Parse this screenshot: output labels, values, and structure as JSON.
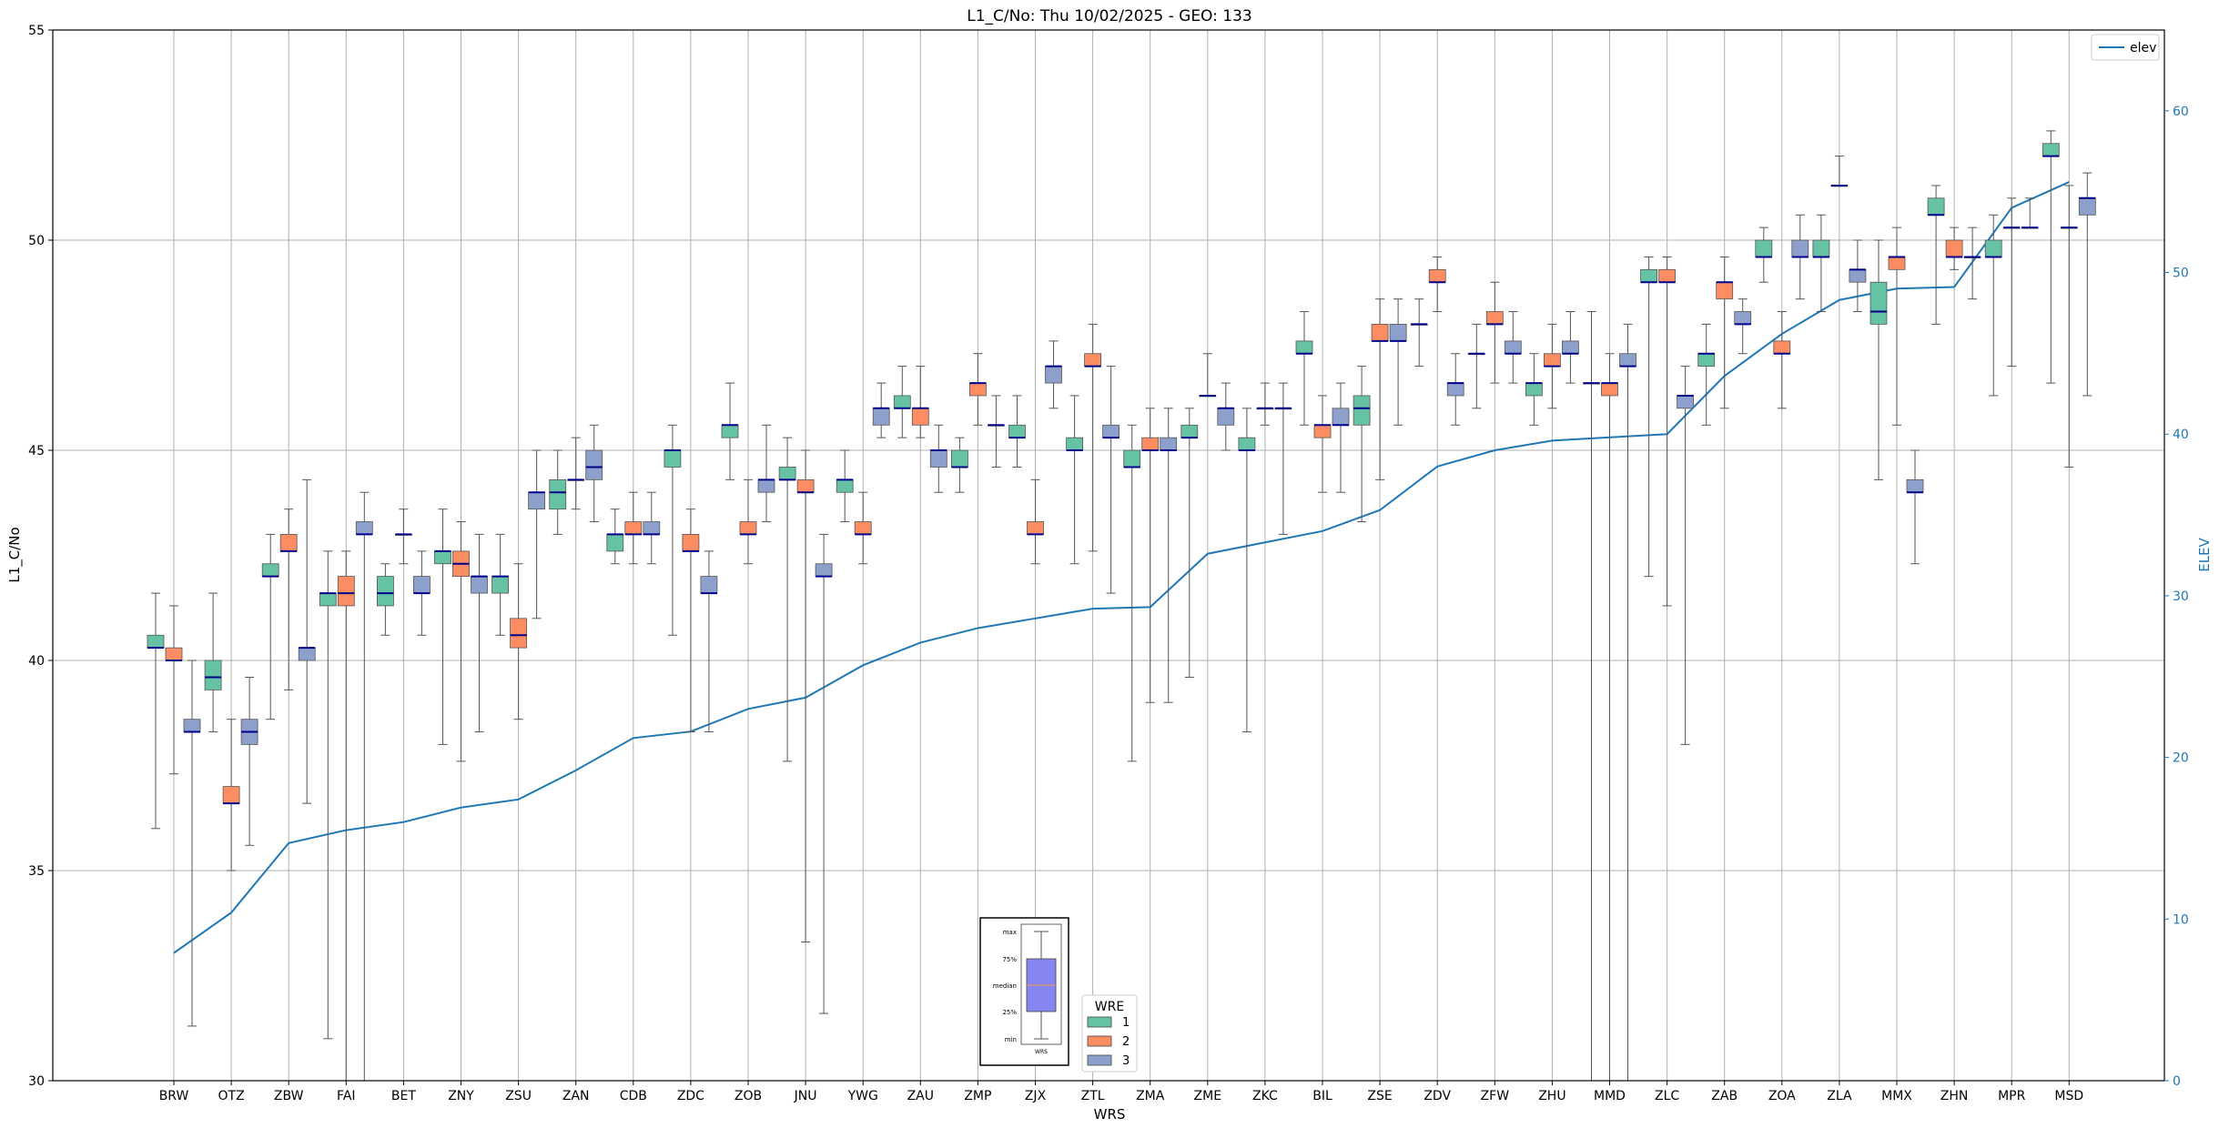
{
  "chart_data": {
    "type": "box",
    "title": "L1_C/No: Thu 10/02/2025 - GEO: 133",
    "xlabel": "WRS",
    "ylabel": "L1_C/No",
    "y2label": "ELEV",
    "ylim": [
      30,
      55
    ],
    "y2lim": [
      0,
      65
    ],
    "yticks": [
      30,
      35,
      40,
      45,
      50,
      55
    ],
    "y2ticks": [
      0,
      10,
      20,
      30,
      40,
      50,
      60
    ],
    "grid": true,
    "categories": [
      "BRW",
      "OTZ",
      "ZBW",
      "FAI",
      "BET",
      "ZNY",
      "ZSU",
      "ZAN",
      "CDB",
      "ZDC",
      "ZOB",
      "JNU",
      "YWG",
      "ZAU",
      "ZMP",
      "ZJX",
      "ZTL",
      "ZMA",
      "ZME",
      "ZKC",
      "BIL",
      "ZSE",
      "ZDV",
      "ZFW",
      "ZHU",
      "MMD",
      "ZLC",
      "ZAB",
      "ZOA",
      "ZLA",
      "MMX",
      "ZHN",
      "MPR",
      "MSD"
    ],
    "colors": {
      "1": "#66c2a5",
      "2": "#fc8d62",
      "3": "#8da0cb",
      "median": "#00008b",
      "elev": "#1f77b4",
      "whisker": "#555555"
    },
    "legend": {
      "title": "WRE",
      "labels": [
        "1",
        "2",
        "3"
      ],
      "location": "bottom-center"
    },
    "line_legend": {
      "label": "elev",
      "location": "top-right"
    },
    "inset": {
      "labels": [
        "max",
        "75%",
        "median",
        "25%",
        "min"
      ],
      "xlabel": "WRS"
    },
    "series": [
      {
        "name": "1",
        "boxes": [
          [
            0,
            36.0,
            40.3,
            40.3,
            40.6,
            41.6
          ],
          [
            1,
            38.3,
            39.3,
            39.6,
            40.0,
            41.6
          ],
          [
            2,
            38.6,
            42.0,
            42.0,
            42.3,
            43.0
          ],
          [
            3,
            31.0,
            41.3,
            41.6,
            41.6,
            42.6
          ],
          [
            4,
            40.6,
            41.3,
            41.6,
            42.0,
            42.3
          ],
          [
            5,
            38.0,
            42.3,
            42.6,
            42.6,
            43.6
          ],
          [
            6,
            40.6,
            41.6,
            42.0,
            42.0,
            43.0
          ],
          [
            7,
            43.0,
            43.6,
            44.0,
            44.3,
            45.0
          ],
          [
            8,
            42.3,
            42.6,
            43.0,
            43.0,
            43.6
          ],
          [
            9,
            40.6,
            44.6,
            45.0,
            45.0,
            45.6
          ],
          [
            10,
            44.3,
            45.3,
            45.6,
            45.6,
            46.6
          ],
          [
            11,
            37.6,
            44.3,
            44.3,
            44.6,
            45.3
          ],
          [
            12,
            43.3,
            44.0,
            44.3,
            44.3,
            45.0
          ],
          [
            13,
            45.3,
            46.0,
            46.0,
            46.3,
            47.0
          ],
          [
            14,
            44.0,
            44.6,
            44.6,
            45.0,
            45.3
          ],
          [
            15,
            44.6,
            45.3,
            45.3,
            45.6,
            46.3
          ],
          [
            16,
            42.3,
            45.0,
            45.0,
            45.3,
            46.3
          ],
          [
            17,
            37.6,
            44.6,
            44.6,
            45.0,
            45.6
          ],
          [
            18,
            39.6,
            45.3,
            45.3,
            45.6,
            46.0
          ],
          [
            19,
            38.3,
            45.0,
            45.0,
            45.3,
            46.0
          ],
          [
            20,
            45.6,
            47.3,
            47.3,
            47.6,
            48.3
          ],
          [
            21,
            43.3,
            45.6,
            46.0,
            46.3,
            47.0
          ],
          [
            22,
            47.0,
            48.0,
            48.0,
            48.0,
            48.6
          ],
          [
            23,
            46.0,
            47.3,
            47.3,
            47.3,
            48.0
          ],
          [
            24,
            45.6,
            46.3,
            46.6,
            46.6,
            47.3
          ],
          [
            25,
            30.0,
            46.6,
            46.6,
            46.6,
            48.3
          ],
          [
            26,
            42.0,
            49.0,
            49.0,
            49.3,
            49.6
          ],
          [
            27,
            45.6,
            47.0,
            47.3,
            47.3,
            48.0
          ],
          [
            28,
            49.0,
            49.6,
            49.6,
            50.0,
            50.3
          ],
          [
            29,
            48.3,
            49.6,
            49.6,
            50.0,
            50.6
          ],
          [
            30,
            44.3,
            48.0,
            48.3,
            49.0,
            50.0
          ],
          [
            31,
            48.0,
            50.6,
            50.6,
            51.0,
            51.3
          ],
          [
            32,
            46.3,
            49.6,
            49.6,
            50.0,
            50.6
          ],
          [
            33,
            46.6,
            52.0,
            52.0,
            52.3,
            52.6
          ]
        ]
      },
      {
        "name": "2",
        "boxes": [
          [
            0,
            37.3,
            40.0,
            40.0,
            40.3,
            41.3
          ],
          [
            1,
            35.0,
            36.6,
            36.6,
            37.0,
            38.6
          ],
          [
            2,
            39.3,
            42.6,
            42.6,
            43.0,
            43.6
          ],
          [
            3,
            30.0,
            41.3,
            41.6,
            42.0,
            42.6
          ],
          [
            4,
            42.3,
            43.0,
            43.0,
            43.0,
            43.6
          ],
          [
            5,
            37.6,
            42.0,
            42.3,
            42.6,
            43.3
          ],
          [
            6,
            38.6,
            40.3,
            40.6,
            41.0,
            42.3
          ],
          [
            7,
            43.6,
            44.3,
            44.3,
            44.3,
            45.3
          ],
          [
            8,
            42.3,
            43.0,
            43.0,
            43.3,
            44.0
          ],
          [
            9,
            38.3,
            42.6,
            42.6,
            43.0,
            43.6
          ],
          [
            10,
            42.3,
            43.0,
            43.0,
            43.3,
            44.3
          ],
          [
            11,
            33.3,
            44.0,
            44.0,
            44.3,
            45.0
          ],
          [
            12,
            42.3,
            43.0,
            43.0,
            43.3,
            44.0
          ],
          [
            13,
            45.3,
            45.6,
            46.0,
            46.0,
            47.0
          ],
          [
            14,
            45.6,
            46.3,
            46.6,
            46.6,
            47.3
          ],
          [
            15,
            42.3,
            43.0,
            43.0,
            43.3,
            44.3
          ],
          [
            16,
            42.6,
            47.0,
            47.0,
            47.3,
            48.0
          ],
          [
            17,
            39.0,
            45.0,
            45.0,
            45.3,
            46.0
          ],
          [
            18,
            46.3,
            46.3,
            46.3,
            46.3,
            47.3
          ],
          [
            19,
            45.6,
            46.0,
            46.0,
            46.0,
            46.6
          ],
          [
            20,
            44.0,
            45.3,
            45.6,
            45.6,
            46.3
          ],
          [
            21,
            44.3,
            47.6,
            47.6,
            48.0,
            48.6
          ],
          [
            22,
            48.3,
            49.0,
            49.0,
            49.3,
            49.6
          ],
          [
            23,
            46.6,
            48.0,
            48.0,
            48.3,
            49.0
          ],
          [
            24,
            46.0,
            47.0,
            47.0,
            47.3,
            48.0
          ],
          [
            25,
            30.0,
            46.3,
            46.6,
            46.6,
            47.3
          ],
          [
            26,
            41.3,
            49.0,
            49.0,
            49.3,
            49.6
          ],
          [
            27,
            46.0,
            48.6,
            49.0,
            49.0,
            49.6
          ],
          [
            28,
            46.0,
            47.3,
            47.3,
            47.6,
            48.3
          ],
          [
            29,
            51.3,
            51.3,
            51.3,
            51.3,
            52.0
          ],
          [
            30,
            45.6,
            49.3,
            49.6,
            49.6,
            50.3
          ],
          [
            31,
            49.3,
            49.6,
            49.6,
            50.0,
            50.3
          ],
          [
            32,
            47.0,
            50.3,
            50.3,
            50.3,
            51.0
          ],
          [
            33,
            44.6,
            50.3,
            50.3,
            50.3,
            51.3
          ]
        ]
      },
      {
        "name": "3",
        "boxes": [
          [
            0,
            31.3,
            38.3,
            38.3,
            38.6,
            40.0
          ],
          [
            1,
            35.6,
            38.0,
            38.3,
            38.6,
            39.6
          ],
          [
            2,
            36.6,
            40.0,
            40.3,
            40.3,
            44.3
          ],
          [
            3,
            30.0,
            43.0,
            43.0,
            43.3,
            44.0
          ],
          [
            4,
            40.6,
            41.6,
            41.6,
            42.0,
            42.6
          ],
          [
            5,
            38.3,
            41.6,
            42.0,
            42.0,
            43.0
          ],
          [
            6,
            41.0,
            43.6,
            44.0,
            44.0,
            45.0
          ],
          [
            7,
            43.3,
            44.3,
            44.6,
            45.0,
            45.6
          ],
          [
            8,
            42.3,
            43.0,
            43.0,
            43.3,
            44.0
          ],
          [
            9,
            38.3,
            41.6,
            41.6,
            42.0,
            42.6
          ],
          [
            10,
            43.3,
            44.0,
            44.3,
            44.3,
            45.6
          ],
          [
            11,
            31.6,
            42.0,
            42.0,
            42.3,
            43.0
          ],
          [
            12,
            45.3,
            45.6,
            46.0,
            46.0,
            46.6
          ],
          [
            13,
            44.0,
            44.6,
            45.0,
            45.0,
            45.6
          ],
          [
            14,
            44.6,
            45.6,
            45.6,
            45.6,
            46.3
          ],
          [
            15,
            46.0,
            46.6,
            47.0,
            47.0,
            47.6
          ],
          [
            16,
            41.6,
            45.3,
            45.3,
            45.6,
            47.0
          ],
          [
            17,
            39.0,
            45.0,
            45.0,
            45.3,
            46.0
          ],
          [
            18,
            45.0,
            45.6,
            46.0,
            46.0,
            46.6
          ],
          [
            19,
            43.0,
            46.0,
            46.0,
            46.0,
            46.6
          ],
          [
            20,
            44.0,
            45.6,
            45.6,
            46.0,
            46.6
          ],
          [
            21,
            45.6,
            47.6,
            47.6,
            48.0,
            48.6
          ],
          [
            22,
            45.6,
            46.3,
            46.6,
            46.6,
            47.3
          ],
          [
            23,
            46.6,
            47.3,
            47.3,
            47.6,
            48.3
          ],
          [
            24,
            46.6,
            47.3,
            47.3,
            47.6,
            48.3
          ],
          [
            25,
            30.0,
            47.0,
            47.0,
            47.3,
            48.0
          ],
          [
            26,
            38.0,
            46.0,
            46.3,
            46.3,
            47.0
          ],
          [
            27,
            47.3,
            48.0,
            48.0,
            48.3,
            48.6
          ],
          [
            28,
            48.6,
            49.6,
            49.6,
            50.0,
            50.6
          ],
          [
            29,
            48.3,
            49.0,
            49.3,
            49.3,
            50.0
          ],
          [
            30,
            42.3,
            44.0,
            44.0,
            44.3,
            45.0
          ],
          [
            31,
            48.6,
            49.6,
            49.6,
            49.6,
            50.3
          ],
          [
            32,
            50.3,
            50.3,
            50.3,
            50.3,
            51.0
          ],
          [
            33,
            46.3,
            50.6,
            51.0,
            51.0,
            51.6
          ]
        ]
      }
    ],
    "elev_x": [
      0,
      1,
      2,
      3,
      4,
      5,
      6,
      7,
      8,
      9,
      10,
      11,
      12,
      13,
      14,
      15,
      16,
      17,
      18,
      19,
      20,
      21,
      22,
      23,
      24,
      25,
      26,
      27,
      28,
      29,
      30,
      31,
      32,
      33
    ],
    "elev": [
      7.9,
      10.4,
      14.7,
      15.5,
      16.0,
      16.9,
      17.4,
      19.2,
      21.2,
      21.6,
      23.0,
      23.7,
      25.7,
      27.1,
      28.0,
      28.6,
      29.2,
      29.3,
      32.6,
      33.3,
      34.0,
      35.3,
      38.0,
      39.0,
      39.6,
      39.8,
      40.0,
      43.6,
      46.2,
      48.3,
      49.0,
      49.1,
      54.0,
      55.6
    ]
  }
}
